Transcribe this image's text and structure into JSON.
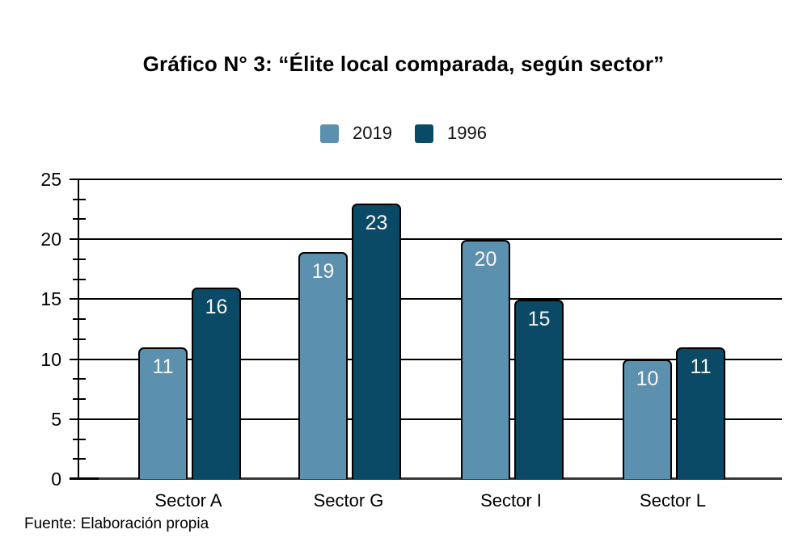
{
  "title": "Gráfico N° 3: “Élite local comparada, según sector”",
  "footer": "Fuente: Elaboración propia",
  "legend": {
    "items": [
      {
        "label": "2019",
        "color": "#5b90af"
      },
      {
        "label": "1996",
        "color": "#0b4a66"
      }
    ]
  },
  "chart_data": {
    "type": "bar",
    "title": "Gráfico N° 3: “Élite local comparada, según sector”",
    "categories": [
      "Sector A",
      "Sector G",
      "Sector I",
      "Sector L"
    ],
    "series": [
      {
        "name": "2019",
        "color": "#5b90af",
        "values": [
          11,
          19,
          20,
          10
        ]
      },
      {
        "name": "1996",
        "color": "#0b4a66",
        "values": [
          16,
          23,
          15,
          11
        ]
      }
    ],
    "ylim": [
      0,
      25
    ],
    "yticks": [
      0,
      5,
      10,
      15,
      20,
      25
    ],
    "minor_ticks_per_interval": 2,
    "grid": "horizontal-major",
    "legend_position": "top-center",
    "bar_labels_inside_top": true,
    "bar_label_color": "#f7f7f7",
    "source_note": "Fuente: Elaboración propia"
  }
}
